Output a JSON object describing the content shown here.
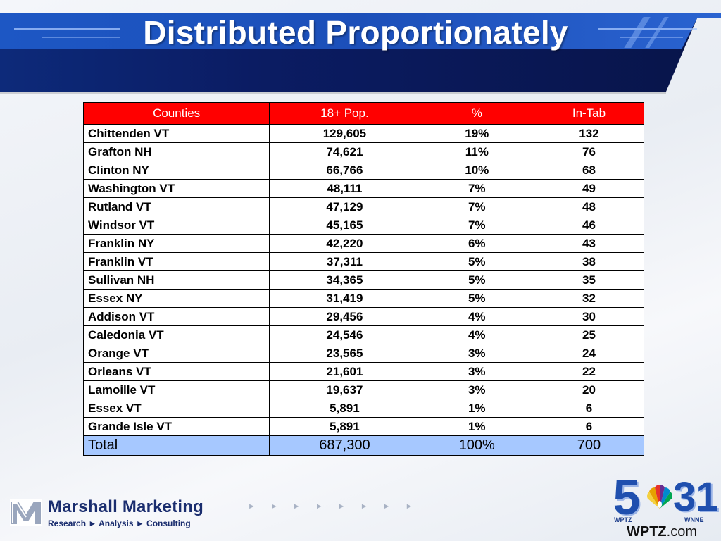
{
  "slide": {
    "title": "Distributed Proportionately"
  },
  "table": {
    "headers": [
      "Counties",
      "18+ Pop.",
      "%",
      "In-Tab"
    ],
    "rows": [
      {
        "county": "Chittenden VT",
        "pop": "129,605",
        "pct": "19%",
        "intab": "132"
      },
      {
        "county": "Grafton NH",
        "pop": "74,621",
        "pct": "11%",
        "intab": "76"
      },
      {
        "county": "Clinton NY",
        "pop": "66,766",
        "pct": "10%",
        "intab": "68"
      },
      {
        "county": "Washington VT",
        "pop": "48,111",
        "pct": "7%",
        "intab": "49"
      },
      {
        "county": "Rutland VT",
        "pop": "47,129",
        "pct": "7%",
        "intab": "48"
      },
      {
        "county": "Windsor VT",
        "pop": "45,165",
        "pct": "7%",
        "intab": "46"
      },
      {
        "county": "Franklin NY",
        "pop": "42,220",
        "pct": "6%",
        "intab": "43"
      },
      {
        "county": "Franklin VT",
        "pop": "37,311",
        "pct": "5%",
        "intab": "38"
      },
      {
        "county": "Sullivan NH",
        "pop": "34,365",
        "pct": "5%",
        "intab": "35"
      },
      {
        "county": "Essex NY",
        "pop": "31,419",
        "pct": "5%",
        "intab": "32"
      },
      {
        "county": "Addison VT",
        "pop": "29,456",
        "pct": "4%",
        "intab": "30"
      },
      {
        "county": "Caledonia VT",
        "pop": "24,546",
        "pct": "4%",
        "intab": "25"
      },
      {
        "county": "Orange VT",
        "pop": "23,565",
        "pct": "3%",
        "intab": "24"
      },
      {
        "county": "Orleans VT",
        "pop": "21,601",
        "pct": "3%",
        "intab": "22"
      },
      {
        "county": "Lamoille VT",
        "pop": "19,637",
        "pct": "3%",
        "intab": "20"
      },
      {
        "county": "Essex VT",
        "pop": "5,891",
        "pct": "1%",
        "intab": "6"
      },
      {
        "county": "Grande Isle VT",
        "pop": "5,891",
        "pct": "1%",
        "intab": "6"
      }
    ],
    "total": {
      "label": "Total",
      "pop": "687,300",
      "pct": "100%",
      "intab": "700"
    }
  },
  "footer": {
    "marshall": {
      "name": "Marshall Marketing",
      "tagline": "Research ► Analysis ► Consulting",
      "arrows": "► ► ► ► ► ► ► ►"
    },
    "station": {
      "channel_a": "5",
      "channel_b": "31",
      "call_a": "WPTZ",
      "call_b": "WNNE",
      "url_main": "WPTZ",
      "url_suffix": ".com"
    }
  },
  "colors": {
    "header_red": "#ff0000",
    "total_blue": "#a6c8ff",
    "banner_navy": "#0b1c63",
    "banner_blue": "#1d57c4",
    "logo_blue": "#1f4fae"
  }
}
